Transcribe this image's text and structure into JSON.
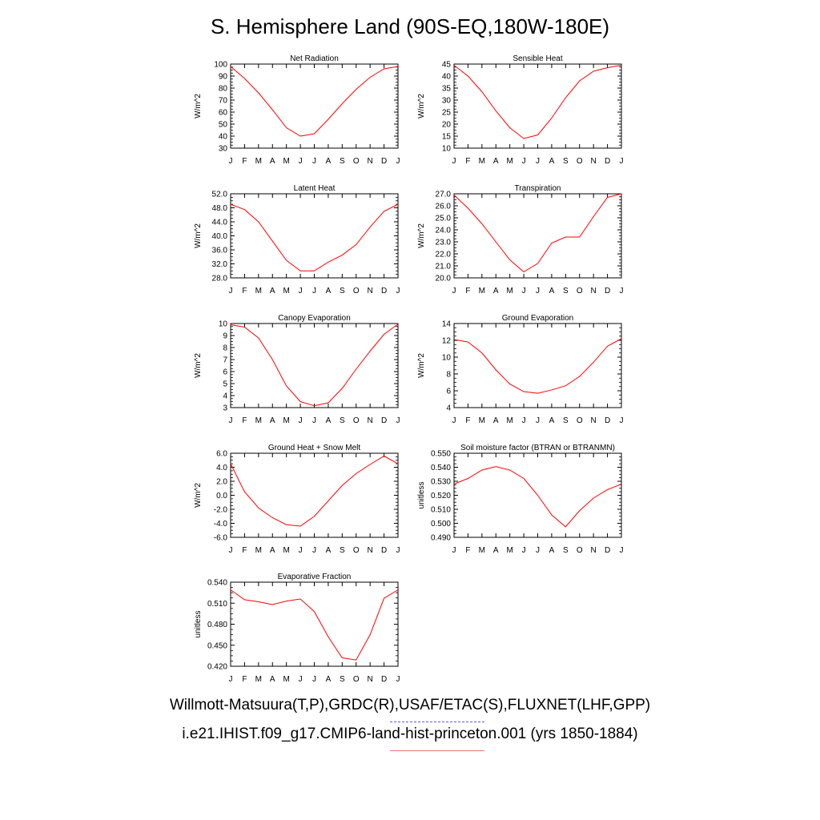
{
  "page": {
    "title": "S. Hemisphere Land (90S-EQ,180W-180E)"
  },
  "legend": {
    "observations_label": "Willmott-Matsuura(T,P),GRDC(R),USAF/ETAC(S),FLUXNET(LHF,GPP)",
    "observations_color": "#5a5af0",
    "model_label": "i.e21.IHIST.f09_g17.CMIP6-land-hist-princeton.001 (yrs 1850-1884)",
    "model_color": "#f07070"
  },
  "chart_data": [
    {
      "type": "line",
      "title": "Net Radiation",
      "ylabel": "W/m^2",
      "x": [
        "J",
        "F",
        "M",
        "A",
        "M",
        "J",
        "J",
        "A",
        "S",
        "O",
        "N",
        "D",
        "J"
      ],
      "ylim": [
        30,
        100
      ],
      "yticks": [
        "30",
        "40",
        "50",
        "60",
        "70",
        "80",
        "90",
        "100"
      ],
      "series": [
        {
          "color": "#ff0000",
          "values": [
            98,
            88,
            76,
            62,
            47,
            40,
            42,
            54,
            67,
            79,
            89,
            96,
            98
          ]
        }
      ]
    },
    {
      "type": "line",
      "title": "Sensible Heat",
      "ylabel": "W/m^2",
      "x": [
        "J",
        "F",
        "M",
        "A",
        "M",
        "J",
        "J",
        "A",
        "S",
        "O",
        "N",
        "D",
        "J"
      ],
      "ylim": [
        10,
        45
      ],
      "yticks": [
        "10",
        "15",
        "20",
        "25",
        "30",
        "35",
        "40",
        "45"
      ],
      "series": [
        {
          "color": "#ff0000",
          "values": [
            44.5,
            40,
            33.5,
            25.5,
            18.5,
            14,
            15.5,
            22.5,
            31,
            38,
            42,
            43.5,
            44.5
          ]
        }
      ]
    },
    {
      "type": "line",
      "title": "Latent Heat",
      "ylabel": "W/m^2",
      "x": [
        "J",
        "F",
        "M",
        "A",
        "M",
        "J",
        "J",
        "A",
        "S",
        "O",
        "N",
        "D",
        "J"
      ],
      "ylim": [
        28,
        52
      ],
      "yticks": [
        "28.0",
        "32.0",
        "36.0",
        "40.0",
        "44.0",
        "48.0",
        "52.0"
      ],
      "series": [
        {
          "color": "#ff0000",
          "values": [
            49,
            47.5,
            44,
            38.5,
            33,
            30,
            30,
            32.5,
            34.5,
            37.5,
            42.5,
            47,
            49
          ]
        }
      ]
    },
    {
      "type": "line",
      "title": "Transpiration",
      "ylabel": "W/m^2",
      "x": [
        "J",
        "F",
        "M",
        "A",
        "M",
        "J",
        "J",
        "A",
        "S",
        "O",
        "N",
        "D",
        "J"
      ],
      "ylim": [
        20,
        27
      ],
      "yticks": [
        "20.0",
        "21.0",
        "22.0",
        "23.0",
        "24.0",
        "25.0",
        "26.0",
        "27.0"
      ],
      "series": [
        {
          "color": "#ff0000",
          "values": [
            26.9,
            25.8,
            24.5,
            23,
            21.5,
            20.5,
            21.2,
            22.9,
            23.4,
            23.4,
            25.1,
            26.7,
            27
          ]
        }
      ]
    },
    {
      "type": "line",
      "title": "Canopy Evaporation",
      "ylabel": "W/m^2",
      "x": [
        "J",
        "F",
        "M",
        "A",
        "M",
        "J",
        "J",
        "A",
        "S",
        "O",
        "N",
        "D",
        "J"
      ],
      "ylim": [
        3,
        10
      ],
      "yticks": [
        "3",
        "4",
        "5",
        "6",
        "7",
        "8",
        "9",
        "10"
      ],
      "series": [
        {
          "color": "#ff0000",
          "values": [
            9.9,
            9.7,
            8.8,
            7,
            4.8,
            3.5,
            3.15,
            3.4,
            4.6,
            6.2,
            7.7,
            9.1,
            9.95
          ]
        }
      ]
    },
    {
      "type": "line",
      "title": "Ground Evaporation",
      "ylabel": "W/m^2",
      "x": [
        "J",
        "F",
        "M",
        "A",
        "M",
        "J",
        "J",
        "A",
        "S",
        "O",
        "N",
        "D",
        "J"
      ],
      "ylim": [
        4,
        14
      ],
      "yticks": [
        "4",
        "6",
        "8",
        "10",
        "12",
        "14"
      ],
      "series": [
        {
          "color": "#ff0000",
          "values": [
            12.1,
            11.8,
            10.5,
            8.5,
            6.8,
            5.9,
            5.7,
            6.1,
            6.6,
            7.7,
            9.4,
            11.3,
            12.2
          ]
        }
      ]
    },
    {
      "type": "line",
      "title": "Ground Heat + Snow Melt",
      "ylabel": "W/m^2",
      "x": [
        "J",
        "F",
        "M",
        "A",
        "M",
        "J",
        "J",
        "A",
        "S",
        "O",
        "N",
        "D",
        "J"
      ],
      "ylim": [
        -6,
        6
      ],
      "yticks": [
        "-6.0",
        "-4.0",
        "-2.0",
        "0.0",
        "2.0",
        "4.0",
        "6.0"
      ],
      "series": [
        {
          "color": "#ff0000",
          "values": [
            4.5,
            0.5,
            -1.8,
            -3.2,
            -4.2,
            -4.4,
            -3.0,
            -0.8,
            1.4,
            3.1,
            4.4,
            5.6,
            4.5
          ]
        }
      ]
    },
    {
      "type": "line",
      "title": "Soil moisture factor (BTRAN or BTRANMN)",
      "ylabel": "unitless",
      "x": [
        "J",
        "F",
        "M",
        "A",
        "M",
        "J",
        "J",
        "A",
        "S",
        "O",
        "N",
        "D",
        "J"
      ],
      "ylim": [
        0.49,
        0.55
      ],
      "yticks": [
        "0.490",
        "0.500",
        "0.510",
        "0.520",
        "0.530",
        "0.540",
        "0.550"
      ],
      "series": [
        {
          "color": "#ff0000",
          "values": [
            0.528,
            0.532,
            0.538,
            0.5405,
            0.538,
            0.532,
            0.52,
            0.506,
            0.4975,
            0.509,
            0.518,
            0.524,
            0.528
          ]
        }
      ]
    },
    {
      "type": "line",
      "title": "Evaporative Fraction",
      "ylabel": "unitless",
      "x": [
        "J",
        "F",
        "M",
        "A",
        "M",
        "J",
        "J",
        "A",
        "S",
        "O",
        "N",
        "D",
        "J"
      ],
      "ylim": [
        0.42,
        0.54
      ],
      "yticks": [
        "0.420",
        "0.450",
        "0.480",
        "0.510",
        "0.540"
      ],
      "series": [
        {
          "color": "#ff0000",
          "values": [
            0.529,
            0.515,
            0.512,
            0.508,
            0.513,
            0.516,
            0.498,
            0.462,
            0.432,
            0.429,
            0.465,
            0.517,
            0.529
          ]
        }
      ]
    }
  ]
}
